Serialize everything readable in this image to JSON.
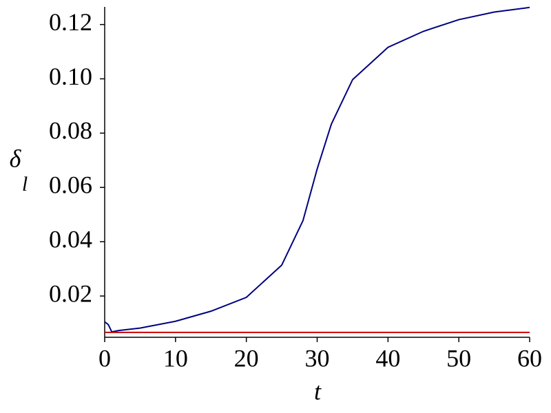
{
  "chart_data": {
    "type": "line",
    "x_label": "t",
    "y_label": "δ",
    "y_label_subscript": "l",
    "series": [
      {
        "color": "#000080",
        "x": [
          0,
          0.5,
          1,
          2,
          5,
          10,
          15,
          20,
          25,
          28,
          30,
          32,
          35,
          40,
          45,
          50,
          55,
          60
        ],
        "values": [
          0.0105,
          0.0095,
          0.0068,
          0.0073,
          0.0082,
          0.0107,
          0.0144,
          0.0195,
          0.0314,
          0.0478,
          0.0668,
          0.0833,
          0.0997,
          0.1116,
          0.1175,
          0.1218,
          0.1246,
          0.1263
        ]
      },
      {
        "color": "#cc0000",
        "x": [
          0,
          60
        ],
        "values": [
          0.0066,
          0.0066
        ]
      }
    ],
    "xlim": [
      0,
      60
    ],
    "xticks": [
      0,
      10,
      20,
      30,
      40,
      50,
      60
    ],
    "ylim": [
      0.0048,
      0.1265
    ],
    "yticks": [
      0.02,
      0.04,
      0.06,
      0.08,
      {
        "value": 0.1,
        "label": "0.10"
      },
      0.12
    ],
    "grid": false
  }
}
